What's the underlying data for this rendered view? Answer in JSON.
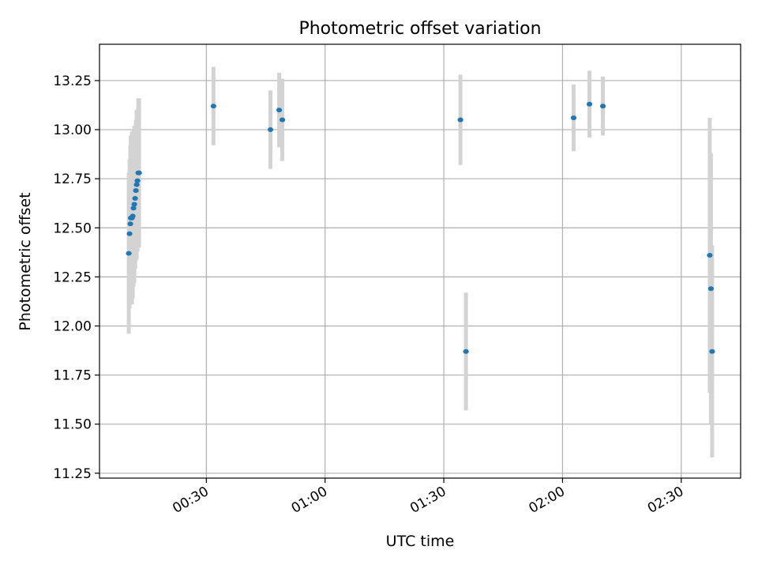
{
  "chart_data": {
    "type": "scatter",
    "title": "Photometric offset variation",
    "xlabel": "UTC time",
    "ylabel": "Photometric offset",
    "xlim": [
      "00:03:00",
      "02:45:00"
    ],
    "ylim": [
      11.225,
      13.435
    ],
    "grid": true,
    "x_ticks": [
      "00:30",
      "01:00",
      "01:30",
      "02:00",
      "02:30"
    ],
    "y_ticks": [
      "11.25",
      "11.50",
      "11.75",
      "12.00",
      "12.25",
      "12.50",
      "12.75",
      "13.00",
      "13.25"
    ],
    "colors": {
      "points": "#1f77b4",
      "errorbars": "#d3d3d3",
      "grid": "#b0b0b0"
    },
    "points": [
      {
        "x": "00:10:24",
        "y": 12.37,
        "err": 0.41
      },
      {
        "x": "00:10:36",
        "y": 12.47,
        "err": 0.38
      },
      {
        "x": "00:10:48",
        "y": 12.52,
        "err": 0.4
      },
      {
        "x": "00:10:54",
        "y": 12.55,
        "err": 0.42
      },
      {
        "x": "00:11:12",
        "y": 12.55,
        "err": 0.44
      },
      {
        "x": "00:11:24",
        "y": 12.56,
        "err": 0.42
      },
      {
        "x": "00:11:36",
        "y": 12.6,
        "err": 0.4
      },
      {
        "x": "00:11:48",
        "y": 12.62,
        "err": 0.4
      },
      {
        "x": "00:12:00",
        "y": 12.65,
        "err": 0.36
      },
      {
        "x": "00:12:12",
        "y": 12.69,
        "err": 0.36
      },
      {
        "x": "00:12:24",
        "y": 12.72,
        "err": 0.38
      },
      {
        "x": "00:12:36",
        "y": 12.74,
        "err": 0.36
      },
      {
        "x": "00:12:48",
        "y": 12.78,
        "err": 0.38
      },
      {
        "x": "00:13:00",
        "y": 12.78,
        "err": 0.38
      },
      {
        "x": "00:31:48",
        "y": 13.12,
        "err": 0.2
      },
      {
        "x": "00:46:12",
        "y": 13.0,
        "err": 0.2
      },
      {
        "x": "00:48:24",
        "y": 13.1,
        "err": 0.19
      },
      {
        "x": "00:49:12",
        "y": 13.05,
        "err": 0.21
      },
      {
        "x": "01:34:12",
        "y": 13.05,
        "err": 0.23
      },
      {
        "x": "01:35:36",
        "y": 11.87,
        "err": 0.3
      },
      {
        "x": "02:02:48",
        "y": 13.06,
        "err": 0.17
      },
      {
        "x": "02:06:48",
        "y": 13.13,
        "err": 0.17
      },
      {
        "x": "02:10:12",
        "y": 13.12,
        "err": 0.15
      },
      {
        "x": "02:37:12",
        "y": 12.36,
        "err": 0.7
      },
      {
        "x": "02:37:30",
        "y": 12.19,
        "err": 0.69
      },
      {
        "x": "02:37:48",
        "y": 11.87,
        "err": 0.54
      }
    ]
  }
}
